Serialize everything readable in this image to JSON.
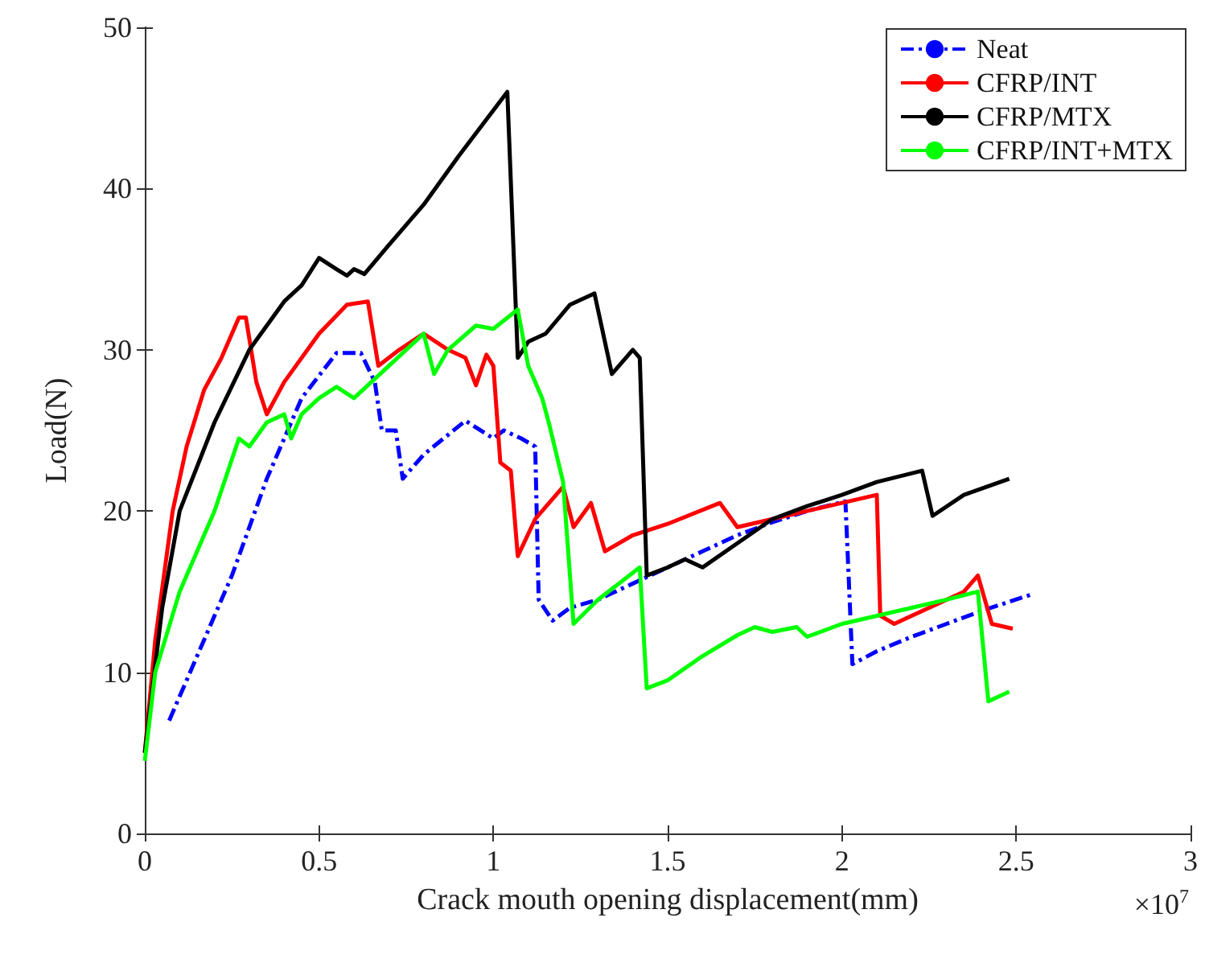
{
  "chart_data": {
    "type": "line",
    "xlabel": "Crack mouth opening displacement(mm)",
    "ylabel": "Load(N)",
    "annotations": [
      "×10$^{7}$"
    ],
    "xlim": [
      0,
      3
    ],
    "xticks": [
      0,
      0.5,
      1,
      1.5,
      2,
      2.5,
      3
    ],
    "ylim": [
      0,
      50
    ],
    "yticks": [
      0,
      10,
      20,
      30,
      40,
      50
    ],
    "grid": false,
    "legend": "top right",
    "marker": "none",
    "series": [
      {
        "name": "Neat",
        "color": "#0000ff",
        "line_style": "dashed",
        "x": [
          0.07,
          0.15,
          0.25,
          0.35,
          0.45,
          0.55,
          0.62,
          0.66,
          0.68,
          0.72,
          0.74,
          0.8,
          0.92,
          1.0,
          1.03,
          1.08,
          1.12,
          1.13,
          1.17,
          1.22,
          1.3,
          1.4,
          1.5,
          1.6,
          1.7,
          1.8,
          1.9,
          2.01,
          2.03,
          2.1,
          2.2,
          2.3,
          2.4,
          2.54
        ],
        "values": [
          7,
          11,
          16,
          22,
          27,
          29.8,
          29.8,
          28,
          25,
          25,
          22,
          23.5,
          25.6,
          24.5,
          25,
          24.5,
          24,
          14.5,
          13.2,
          14,
          14.5,
          15.5,
          16.5,
          17.5,
          18.5,
          19.3,
          20,
          20.6,
          10.5,
          11.3,
          12.2,
          13,
          13.8,
          14.8
        ]
      },
      {
        "name": "CFRP/INT",
        "color": "#ff0000",
        "line_style": "solid",
        "x": [
          0,
          0.03,
          0.08,
          0.12,
          0.17,
          0.22,
          0.27,
          0.29,
          0.32,
          0.35,
          0.4,
          0.5,
          0.58,
          0.64,
          0.67,
          0.73,
          0.8,
          0.87,
          0.92,
          0.95,
          0.98,
          1.0,
          1.02,
          1.05,
          1.07,
          1.12,
          1.2,
          1.23,
          1.28,
          1.32,
          1.4,
          1.5,
          1.65,
          1.7,
          1.8,
          2.0,
          2.1,
          2.11,
          2.15,
          2.25,
          2.35,
          2.39,
          2.43,
          2.49
        ],
        "values": [
          5,
          12,
          20,
          24,
          27.5,
          29.5,
          32,
          32,
          28,
          26,
          28,
          31,
          32.8,
          33,
          29,
          30,
          31,
          30,
          29.5,
          27.8,
          29.7,
          29,
          23,
          22.5,
          17.2,
          19.5,
          21.5,
          19,
          20.5,
          17.5,
          18.5,
          19.2,
          20.5,
          19,
          19.5,
          20.5,
          21,
          13.5,
          13,
          14,
          15,
          16,
          13,
          12.7
        ]
      },
      {
        "name": "CFRP/MTX",
        "color": "#000000",
        "line_style": "solid",
        "x": [
          0,
          0.05,
          0.1,
          0.2,
          0.3,
          0.4,
          0.45,
          0.5,
          0.55,
          0.58,
          0.6,
          0.63,
          0.7,
          0.8,
          0.9,
          0.97,
          1.04,
          1.07,
          1.1,
          1.15,
          1.22,
          1.29,
          1.34,
          1.4,
          1.42,
          1.44,
          1.5,
          1.55,
          1.6,
          1.7,
          1.8,
          1.9,
          2.0,
          2.1,
          2.23,
          2.26,
          2.35,
          2.48
        ],
        "values": [
          5,
          14,
          20,
          25.5,
          30,
          33,
          34,
          35.7,
          35,
          34.6,
          35,
          34.7,
          36.5,
          39,
          42,
          44,
          46,
          29.5,
          30.5,
          31,
          32.8,
          33.5,
          28.5,
          30,
          29.5,
          16,
          16.5,
          17,
          16.5,
          18,
          19.5,
          20.3,
          21,
          21.8,
          22.5,
          19.7,
          21,
          22
        ]
      },
      {
        "name": "CFRP/INT+MTX",
        "color": "#00ff00",
        "line_style": "solid",
        "x": [
          0,
          0.03,
          0.1,
          0.2,
          0.27,
          0.3,
          0.35,
          0.4,
          0.42,
          0.45,
          0.5,
          0.55,
          0.6,
          0.7,
          0.8,
          0.83,
          0.87,
          0.95,
          1.0,
          1.07,
          1.1,
          1.14,
          1.16,
          1.2,
          1.23,
          1.3,
          1.42,
          1.44,
          1.5,
          1.6,
          1.7,
          1.75,
          1.8,
          1.87,
          1.9,
          2.0,
          2.1,
          2.2,
          2.3,
          2.39,
          2.42,
          2.48
        ],
        "values": [
          4.5,
          10,
          15,
          20,
          24.5,
          24,
          25.5,
          26,
          24.5,
          26,
          27,
          27.7,
          27,
          29,
          31,
          28.5,
          30,
          31.5,
          31.3,
          32.5,
          29,
          27,
          25.4,
          21.8,
          13,
          14.5,
          16.5,
          9,
          9.5,
          11,
          12.3,
          12.8,
          12.5,
          12.8,
          12.2,
          13,
          13.5,
          14,
          14.5,
          15,
          8.2,
          8.8
        ]
      }
    ]
  }
}
